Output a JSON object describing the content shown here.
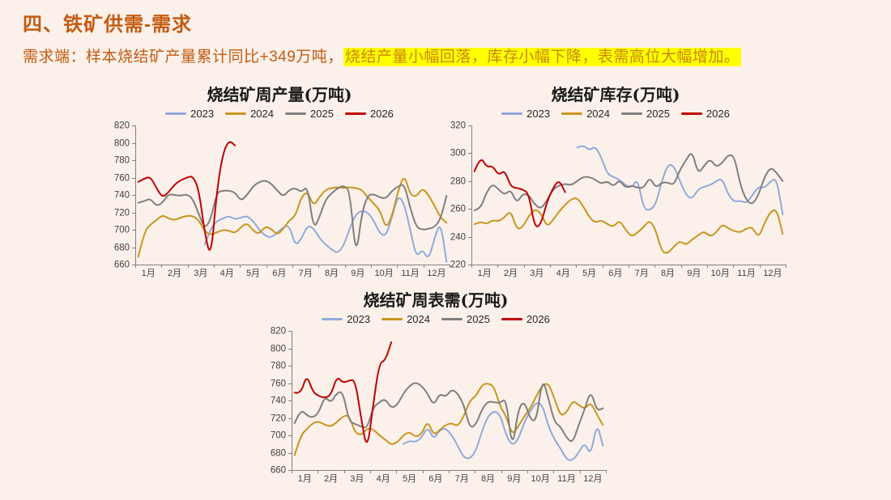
{
  "page": {
    "background": "#FBF1EA"
  },
  "header": {
    "title": "四、铁矿供需-需求",
    "title_color": "#C55A11"
  },
  "subtitle": {
    "prefix": "需求端：样本烧结矿产量累计同比+349万吨，",
    "highlight": "烧结产量小幅回落，库存小幅下降，表需高位大幅增加。",
    "highlight_bg": "#FFFF00",
    "text_color": "#C55A11"
  },
  "colors": {
    "axis": "#808080",
    "tick_label": "#404040",
    "year2023": "#8FAADC",
    "year2024": "#C9951C",
    "year2025": "#7F7F7F",
    "year2026": "#C00000"
  },
  "chart_data": [
    {
      "type": "line",
      "title": "烧结矿周产量(万吨)",
      "ylim": [
        660,
        820
      ],
      "ytick_step": 20,
      "x_labels": [
        "1月",
        "2月",
        "3月",
        "4月",
        "5月",
        "6月",
        "7月",
        "8月",
        "9月",
        "10月",
        "11月",
        "12月"
      ],
      "weeks_per_year": 52,
      "legend_position": "top",
      "grid": false,
      "series": [
        {
          "name": "2023",
          "color": "#8FAADC",
          "start_week": 11,
          "values": [
            683,
            702,
            710,
            713,
            716,
            712,
            714,
            716,
            710,
            700,
            693,
            691,
            697,
            703,
            705,
            681,
            690,
            705,
            702,
            690,
            683,
            677,
            673,
            682,
            702,
            718,
            722,
            720,
            710,
            695,
            693,
            715,
            740,
            730,
            700,
            668,
            678,
            665,
            690,
            710,
            663
          ]
        },
        {
          "name": "2024",
          "color": "#C9951C",
          "start_week": 0,
          "values": [
            669,
            698,
            706,
            711,
            717,
            713,
            711,
            714,
            716,
            716,
            711,
            698,
            694,
            697,
            700,
            699,
            696,
            703,
            708,
            699,
            695,
            704,
            701,
            694,
            701,
            711,
            716,
            738,
            744,
            727,
            738,
            746,
            748,
            749,
            748,
            749,
            748,
            746,
            737,
            730,
            722,
            701,
            716,
            745,
            764,
            740,
            738,
            748,
            740,
            728,
            714,
            708
          ]
        },
        {
          "name": "2025",
          "color": "#7F7F7F",
          "start_week": 0,
          "values": [
            731,
            733,
            736,
            727,
            731,
            741,
            740,
            739,
            741,
            736,
            718,
            701,
            712,
            743,
            745,
            745,
            743,
            733,
            740,
            750,
            755,
            757,
            753,
            745,
            738,
            746,
            748,
            743,
            751,
            700,
            715,
            735,
            742,
            748,
            751,
            745,
            666,
            720,
            740,
            741,
            737,
            736,
            745,
            750,
            753,
            725,
            703,
            700,
            701,
            703,
            712,
            739
          ]
        },
        {
          "name": "2026",
          "color": "#C00000",
          "start_week": 0,
          "values": [
            755,
            759,
            761,
            748,
            737,
            743,
            752,
            757,
            760,
            762,
            747,
            696,
            666,
            745,
            788,
            803,
            797
          ]
        }
      ]
    },
    {
      "type": "line",
      "title": "烧结矿库存(万吨)",
      "ylim": [
        220,
        320
      ],
      "ytick_step": 20,
      "x_labels": [
        "1月",
        "2月",
        "3月",
        "4月",
        "5月",
        "6月",
        "7月",
        "8月",
        "9月",
        "10月",
        "11月",
        "12月"
      ],
      "weeks_per_year": 52,
      "legend_position": "top",
      "grid": false,
      "series": [
        {
          "name": "2023",
          "color": "#8FAADC",
          "start_week": 17,
          "values": [
            304,
            306,
            302,
            305,
            297,
            285,
            283,
            281,
            277,
            275,
            282,
            260,
            259,
            263,
            280,
            292,
            291,
            280,
            270,
            267,
            274,
            276,
            277,
            280,
            282,
            270,
            265,
            266,
            264,
            270,
            276,
            275,
            280,
            282,
            256
          ]
        },
        {
          "name": "2024",
          "color": "#C9951C",
          "start_week": 0,
          "values": [
            249,
            251,
            249,
            252,
            251,
            254,
            259,
            245,
            247,
            255,
            260,
            257,
            247,
            252,
            258,
            263,
            267,
            268,
            262,
            254,
            250,
            252,
            249,
            247,
            252,
            245,
            240,
            243,
            247,
            252,
            245,
            229,
            228,
            233,
            237,
            234,
            238,
            241,
            244,
            240,
            243,
            249,
            246,
            244,
            243,
            246,
            247,
            239,
            250,
            258,
            260,
            242
          ]
        },
        {
          "name": "2025",
          "color": "#7F7F7F",
          "start_week": 0,
          "values": [
            259,
            260,
            272,
            278,
            274,
            270,
            274,
            264,
            271,
            270,
            263,
            260,
            266,
            274,
            277,
            278,
            277,
            280,
            283,
            283,
            281,
            278,
            280,
            276,
            281,
            275,
            277,
            275,
            275,
            283,
            275,
            279,
            279,
            277,
            288,
            295,
            302,
            285,
            291,
            296,
            290,
            293,
            299,
            298,
            277,
            266,
            263,
            270,
            283,
            290,
            286,
            280
          ]
        },
        {
          "name": "2026",
          "color": "#C00000",
          "start_week": 0,
          "values": [
            287,
            298,
            290,
            291,
            284,
            288,
            276,
            275,
            274,
            271,
            246,
            249,
            265,
            275,
            281,
            272
          ]
        }
      ]
    },
    {
      "type": "line",
      "title": "烧结矿周表需(万吨)",
      "ylim": [
        660,
        820
      ],
      "ytick_step": 20,
      "x_labels": [
        "1月",
        "2月",
        "3月",
        "4月",
        "5月",
        "6月",
        "7月",
        "8月",
        "9月",
        "10月",
        "11月",
        "12月"
      ],
      "weeks_per_year": 52,
      "legend_position": "top",
      "grid": false,
      "series": [
        {
          "name": "2023",
          "color": "#8FAADC",
          "start_week": 18,
          "values": [
            690,
            694,
            692,
            697,
            710,
            695,
            706,
            708,
            700,
            688,
            674,
            673,
            682,
            705,
            722,
            728,
            724,
            700,
            688,
            695,
            715,
            728,
            738,
            735,
            710,
            695,
            685,
            672,
            671,
            680,
            692,
            676,
            715,
            688
          ]
        },
        {
          "name": "2024",
          "color": "#C9951C",
          "start_week": 0,
          "values": [
            677,
            700,
            707,
            714,
            716,
            712,
            710,
            715,
            722,
            723,
            703,
            700,
            708,
            707,
            700,
            695,
            689,
            692,
            700,
            704,
            698,
            701,
            717,
            700,
            706,
            712,
            714,
            710,
            722,
            740,
            745,
            758,
            760,
            756,
            733,
            722,
            700,
            710,
            722,
            731,
            745,
            758,
            760,
            742,
            722,
            726,
            740,
            735,
            730,
            738,
            724,
            712
          ]
        },
        {
          "name": "2025",
          "color": "#7F7F7F",
          "start_week": 0,
          "values": [
            714,
            730,
            723,
            720,
            726,
            745,
            737,
            749,
            750,
            716,
            713,
            710,
            708,
            732,
            738,
            742,
            731,
            735,
            748,
            757,
            761,
            757,
            748,
            734,
            748,
            744,
            753,
            748,
            735,
            708,
            712,
            730,
            739,
            738,
            737,
            743,
            682,
            730,
            740,
            718,
            716,
            767,
            742,
            715,
            710,
            697,
            691,
            712,
            730,
            752,
            728,
            731
          ]
        },
        {
          "name": "2026",
          "color": "#C00000",
          "start_week": 0,
          "values": [
            749,
            747,
            770,
            750,
            745,
            743,
            746,
            768,
            760,
            763,
            764,
            720,
            681,
            735,
            783,
            786,
            807
          ]
        }
      ]
    }
  ]
}
